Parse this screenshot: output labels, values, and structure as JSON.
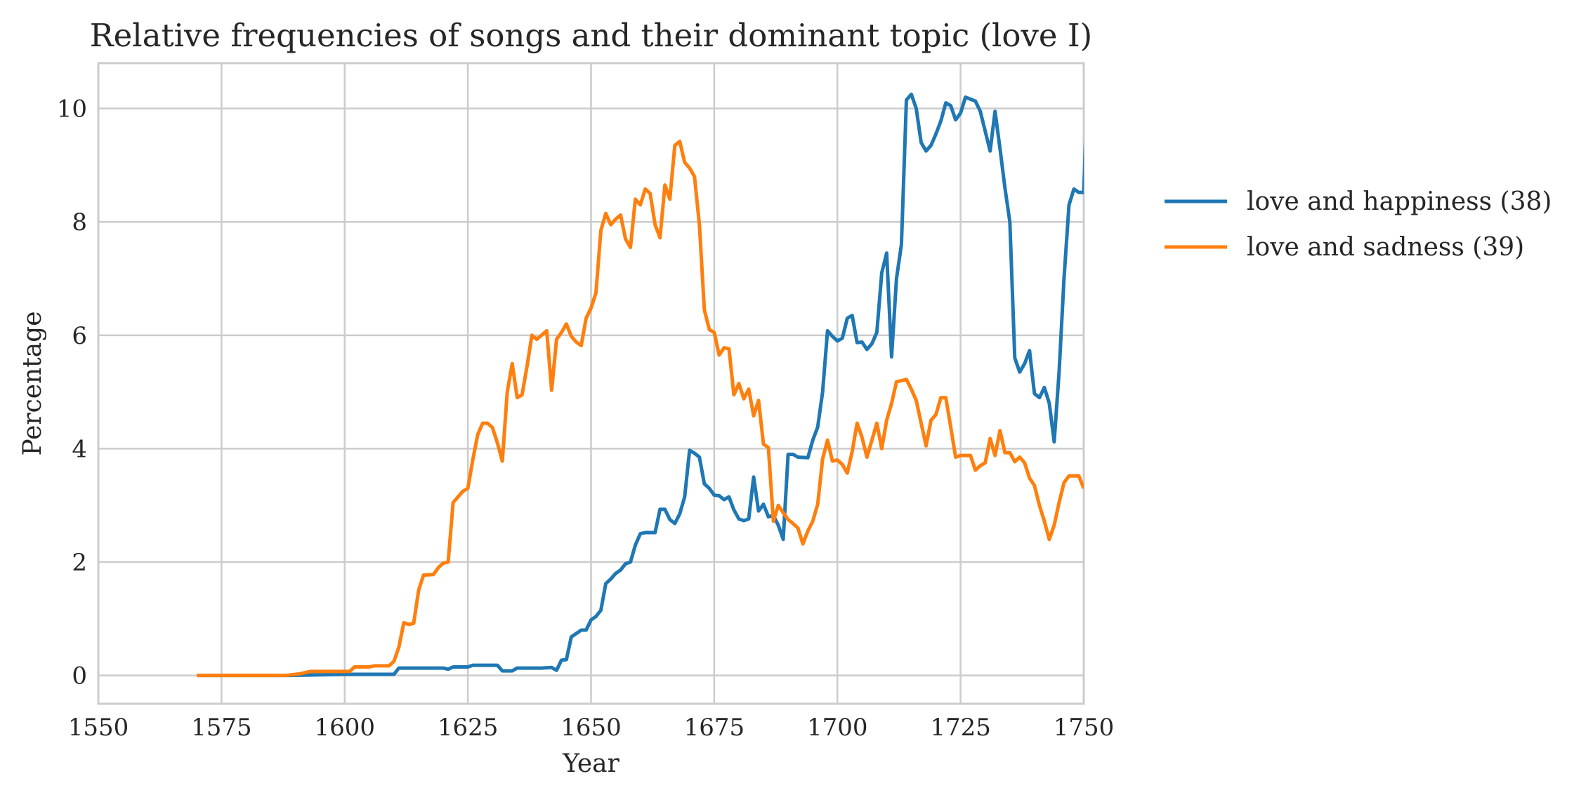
{
  "chart_data": {
    "type": "line",
    "title": "Relative frequencies of songs and their dominant topic (love I)",
    "xlabel": "Year",
    "ylabel": "Percentage",
    "xlim": [
      1550,
      1750
    ],
    "ylim": [
      -0.5,
      10.8
    ],
    "xticks": [
      1550,
      1575,
      1600,
      1625,
      1650,
      1675,
      1700,
      1725,
      1750
    ],
    "yticks": [
      0,
      2,
      4,
      6,
      8,
      10
    ],
    "grid": true,
    "legend_position": "outside-right",
    "series": [
      {
        "name": "love and happiness (38)",
        "color": "#1f77b4",
        "points": [
          [
            1570,
            0
          ],
          [
            1589,
            0
          ],
          [
            1600,
            0.02
          ],
          [
            1610,
            0.02
          ],
          [
            1611,
            0.13
          ],
          [
            1620,
            0.13
          ],
          [
            1621,
            0.11
          ],
          [
            1622,
            0.15
          ],
          [
            1625,
            0.15
          ],
          [
            1626,
            0.18
          ],
          [
            1631,
            0.18
          ],
          [
            1632,
            0.08
          ],
          [
            1634,
            0.08
          ],
          [
            1635,
            0.13
          ],
          [
            1640,
            0.13
          ],
          [
            1642,
            0.14
          ],
          [
            1643,
            0.09
          ],
          [
            1644,
            0.27
          ],
          [
            1645,
            0.28
          ],
          [
            1646,
            0.68
          ],
          [
            1647,
            0.74
          ],
          [
            1648,
            0.8
          ],
          [
            1649,
            0.8
          ],
          [
            1650,
            0.98
          ],
          [
            1651,
            1.04
          ],
          [
            1652,
            1.15
          ],
          [
            1653,
            1.62
          ],
          [
            1654,
            1.7
          ],
          [
            1655,
            1.8
          ],
          [
            1656,
            1.86
          ],
          [
            1657,
            1.97
          ],
          [
            1658,
            2.0
          ],
          [
            1659,
            2.3
          ],
          [
            1660,
            2.5
          ],
          [
            1661,
            2.52
          ],
          [
            1663,
            2.52
          ],
          [
            1664,
            2.93
          ],
          [
            1665,
            2.93
          ],
          [
            1666,
            2.75
          ],
          [
            1667,
            2.68
          ],
          [
            1668,
            2.85
          ],
          [
            1669,
            3.15
          ],
          [
            1670,
            3.97
          ],
          [
            1671,
            3.92
          ],
          [
            1672,
            3.85
          ],
          [
            1673,
            3.38
          ],
          [
            1674,
            3.3
          ],
          [
            1675,
            3.18
          ],
          [
            1676,
            3.17
          ],
          [
            1677,
            3.1
          ],
          [
            1678,
            3.15
          ],
          [
            1679,
            2.92
          ],
          [
            1680,
            2.76
          ],
          [
            1681,
            2.73
          ],
          [
            1682,
            2.76
          ],
          [
            1683,
            3.5
          ],
          [
            1684,
            2.9
          ],
          [
            1685,
            3.02
          ],
          [
            1686,
            2.8
          ],
          [
            1687,
            2.82
          ],
          [
            1688,
            2.65
          ],
          [
            1689,
            2.4
          ],
          [
            1690,
            3.9
          ],
          [
            1691,
            3.9
          ],
          [
            1692,
            3.85
          ],
          [
            1694,
            3.84
          ],
          [
            1695,
            4.15
          ],
          [
            1696,
            4.38
          ],
          [
            1697,
            5.0
          ],
          [
            1698,
            6.08
          ],
          [
            1699,
            5.98
          ],
          [
            1700,
            5.9
          ],
          [
            1701,
            5.95
          ],
          [
            1702,
            6.3
          ],
          [
            1703,
            6.35
          ],
          [
            1704,
            5.87
          ],
          [
            1705,
            5.88
          ],
          [
            1706,
            5.75
          ],
          [
            1707,
            5.85
          ],
          [
            1708,
            6.05
          ],
          [
            1709,
            7.1
          ],
          [
            1710,
            7.45
          ],
          [
            1711,
            5.62
          ],
          [
            1712,
            7.0
          ],
          [
            1713,
            7.6
          ],
          [
            1714,
            10.15
          ],
          [
            1715,
            10.25
          ],
          [
            1716,
            10.0
          ],
          [
            1717,
            9.4
          ],
          [
            1718,
            9.25
          ],
          [
            1719,
            9.35
          ],
          [
            1720,
            9.55
          ],
          [
            1721,
            9.78
          ],
          [
            1722,
            10.1
          ],
          [
            1723,
            10.05
          ],
          [
            1724,
            9.8
          ],
          [
            1725,
            9.92
          ],
          [
            1726,
            10.2
          ],
          [
            1728,
            10.13
          ],
          [
            1729,
            9.95
          ],
          [
            1731,
            9.25
          ],
          [
            1732,
            9.95
          ],
          [
            1733,
            9.3
          ],
          [
            1734,
            8.6
          ],
          [
            1735,
            8.0
          ],
          [
            1736,
            5.6
          ],
          [
            1737,
            5.35
          ],
          [
            1738,
            5.5
          ],
          [
            1739,
            5.73
          ],
          [
            1740,
            4.97
          ],
          [
            1741,
            4.9
          ],
          [
            1742,
            5.08
          ],
          [
            1743,
            4.8
          ],
          [
            1744,
            4.12
          ],
          [
            1745,
            5.35
          ],
          [
            1746,
            7.0
          ],
          [
            1747,
            8.3
          ],
          [
            1748,
            8.58
          ],
          [
            1749,
            8.52
          ],
          [
            1750,
            8.52
          ],
          [
            1750.5,
            9.8
          ]
        ]
      },
      {
        "name": "love and sadness (39)",
        "color": "#ff7f0e",
        "points": [
          [
            1570,
            0
          ],
          [
            1588,
            0
          ],
          [
            1591,
            0.03
          ],
          [
            1593,
            0.07
          ],
          [
            1601,
            0.07
          ],
          [
            1602,
            0.15
          ],
          [
            1605,
            0.15
          ],
          [
            1606,
            0.17
          ],
          [
            1609,
            0.17
          ],
          [
            1610,
            0.25
          ],
          [
            1611,
            0.5
          ],
          [
            1612,
            0.93
          ],
          [
            1613,
            0.9
          ],
          [
            1614,
            0.92
          ],
          [
            1615,
            1.5
          ],
          [
            1616,
            1.77
          ],
          [
            1618,
            1.78
          ],
          [
            1619,
            1.9
          ],
          [
            1620,
            1.98
          ],
          [
            1621,
            2.0
          ],
          [
            1622,
            3.05
          ],
          [
            1623,
            3.15
          ],
          [
            1624,
            3.25
          ],
          [
            1625,
            3.3
          ],
          [
            1626,
            3.8
          ],
          [
            1627,
            4.25
          ],
          [
            1628,
            4.45
          ],
          [
            1629,
            4.45
          ],
          [
            1630,
            4.37
          ],
          [
            1631,
            4.1
          ],
          [
            1632,
            3.78
          ],
          [
            1633,
            5.0
          ],
          [
            1634,
            5.5
          ],
          [
            1635,
            4.9
          ],
          [
            1636,
            4.95
          ],
          [
            1637,
            5.45
          ],
          [
            1638,
            6.0
          ],
          [
            1639,
            5.93
          ],
          [
            1641,
            6.08
          ],
          [
            1642,
            5.03
          ],
          [
            1643,
            5.93
          ],
          [
            1644,
            6.05
          ],
          [
            1645,
            6.2
          ],
          [
            1646,
            5.98
          ],
          [
            1647,
            5.88
          ],
          [
            1648,
            5.82
          ],
          [
            1649,
            6.3
          ],
          [
            1650,
            6.48
          ],
          [
            1651,
            6.75
          ],
          [
            1652,
            7.85
          ],
          [
            1653,
            8.15
          ],
          [
            1654,
            7.95
          ],
          [
            1655,
            8.05
          ],
          [
            1656,
            8.12
          ],
          [
            1657,
            7.7
          ],
          [
            1658,
            7.55
          ],
          [
            1659,
            8.4
          ],
          [
            1660,
            8.3
          ],
          [
            1661,
            8.58
          ],
          [
            1662,
            8.5
          ],
          [
            1663,
            7.95
          ],
          [
            1664,
            7.72
          ],
          [
            1665,
            8.65
          ],
          [
            1666,
            8.4
          ],
          [
            1667,
            9.35
          ],
          [
            1668,
            9.42
          ],
          [
            1669,
            9.05
          ],
          [
            1670,
            8.95
          ],
          [
            1671,
            8.8
          ],
          [
            1672,
            7.95
          ],
          [
            1673,
            6.45
          ],
          [
            1674,
            6.1
          ],
          [
            1675,
            6.05
          ],
          [
            1676,
            5.65
          ],
          [
            1677,
            5.78
          ],
          [
            1678,
            5.76
          ],
          [
            1679,
            4.95
          ],
          [
            1680,
            5.15
          ],
          [
            1681,
            4.88
          ],
          [
            1682,
            5.05
          ],
          [
            1683,
            4.58
          ],
          [
            1684,
            4.85
          ],
          [
            1685,
            4.08
          ],
          [
            1686,
            4.02
          ],
          [
            1687,
            2.72
          ],
          [
            1688,
            3.0
          ],
          [
            1689,
            2.87
          ],
          [
            1690,
            2.75
          ],
          [
            1691,
            2.68
          ],
          [
            1692,
            2.6
          ],
          [
            1693,
            2.32
          ],
          [
            1694,
            2.55
          ],
          [
            1695,
            2.72
          ],
          [
            1696,
            3.02
          ],
          [
            1697,
            3.82
          ],
          [
            1698,
            4.15
          ],
          [
            1699,
            3.78
          ],
          [
            1700,
            3.8
          ],
          [
            1701,
            3.72
          ],
          [
            1702,
            3.57
          ],
          [
            1703,
            3.95
          ],
          [
            1704,
            4.45
          ],
          [
            1705,
            4.2
          ],
          [
            1706,
            3.85
          ],
          [
            1707,
            4.15
          ],
          [
            1708,
            4.45
          ],
          [
            1709,
            4.0
          ],
          [
            1710,
            4.5
          ],
          [
            1711,
            4.8
          ],
          [
            1712,
            5.18
          ],
          [
            1713,
            5.2
          ],
          [
            1714,
            5.22
          ],
          [
            1715,
            5.05
          ],
          [
            1716,
            4.85
          ],
          [
            1717,
            4.45
          ],
          [
            1718,
            4.05
          ],
          [
            1719,
            4.5
          ],
          [
            1720,
            4.6
          ],
          [
            1721,
            4.9
          ],
          [
            1722,
            4.9
          ],
          [
            1723,
            4.38
          ],
          [
            1724,
            3.85
          ],
          [
            1725,
            3.88
          ],
          [
            1727,
            3.88
          ],
          [
            1728,
            3.62
          ],
          [
            1729,
            3.7
          ],
          [
            1730,
            3.75
          ],
          [
            1731,
            4.18
          ],
          [
            1732,
            3.88
          ],
          [
            1733,
            4.32
          ],
          [
            1734,
            3.93
          ],
          [
            1735,
            3.93
          ],
          [
            1736,
            3.77
          ],
          [
            1737,
            3.85
          ],
          [
            1738,
            3.75
          ],
          [
            1739,
            3.48
          ],
          [
            1740,
            3.35
          ],
          [
            1741,
            3.0
          ],
          [
            1742,
            2.72
          ],
          [
            1743,
            2.4
          ],
          [
            1744,
            2.65
          ],
          [
            1745,
            3.05
          ],
          [
            1746,
            3.4
          ],
          [
            1747,
            3.52
          ],
          [
            1749,
            3.52
          ],
          [
            1750,
            3.3
          ]
        ]
      }
    ]
  }
}
